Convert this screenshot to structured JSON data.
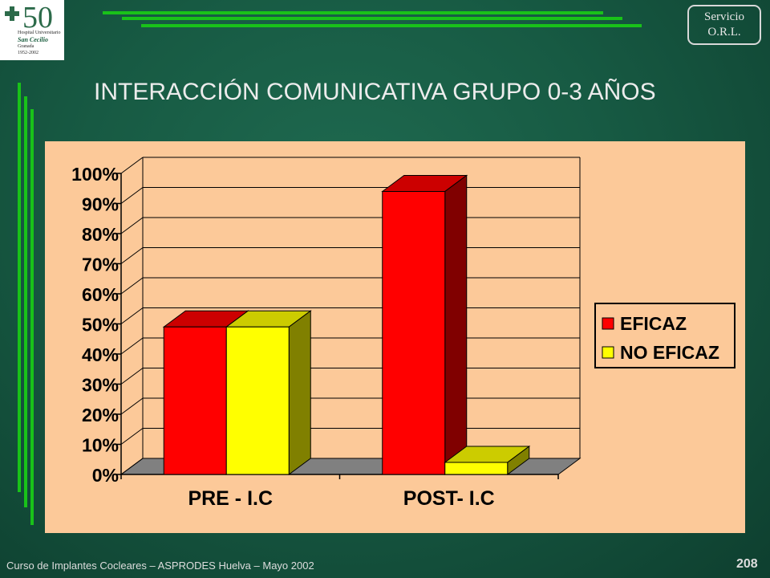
{
  "header": {
    "logo": {
      "number": "50",
      "line1": "Hospital Universitario",
      "line2": "San Cecilio",
      "line3": "Granada",
      "line4": "1952-2002"
    },
    "service_badge": {
      "line1": "Servicio",
      "line2": "O.R.L."
    },
    "title": "INTERACCIÓN COMUNICATIVA GRUPO 0-3 AÑOS"
  },
  "chart_data": {
    "type": "bar",
    "style": "3d-clustered",
    "categories": [
      "PRE - I.C",
      "POST- I.C"
    ],
    "series": [
      {
        "name": "EFICAZ",
        "color": "#ff0000",
        "values": [
          49,
          94
        ]
      },
      {
        "name": "NO EFICAZ",
        "color": "#ffff00",
        "values": [
          49,
          4
        ]
      }
    ],
    "yticks": [
      "0%",
      "10%",
      "20%",
      "30%",
      "40%",
      "50%",
      "60%",
      "70%",
      "80%",
      "90%",
      "100%"
    ],
    "ylim": [
      0,
      100
    ],
    "grid": true,
    "legend": "right",
    "colors": {
      "wall": "#fcc999",
      "floor": "#808080"
    }
  },
  "footer": {
    "text": "Curso de Implantes Cocleares – ASPRODES Huelva – Mayo 2002",
    "page": "208"
  }
}
